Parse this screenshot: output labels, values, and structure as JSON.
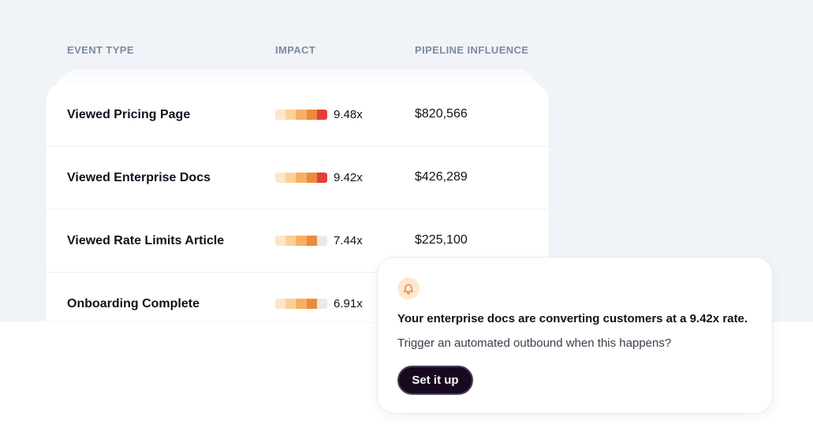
{
  "table": {
    "headers": {
      "event_type": "EVENT TYPE",
      "impact": "IMPACT",
      "pipeline_influence": "PIPELINE INFLUENCE"
    },
    "rows": [
      {
        "event": "Viewed Pricing Page",
        "impact": "9.48x",
        "impact_level": 5,
        "pipeline": "$820,566"
      },
      {
        "event": "Viewed Enterprise Docs",
        "impact": "9.42x",
        "impact_level": 5,
        "pipeline": "$426,289"
      },
      {
        "event": "Viewed Rate Limits Article",
        "impact": "7.44x",
        "impact_level": 4,
        "pipeline": "$225,100"
      },
      {
        "event": "Onboarding Complete",
        "impact": "6.91x",
        "impact_level": 4,
        "pipeline": ""
      }
    ]
  },
  "impact_bar_colors": [
    "#fde6c8",
    "#fbd19a",
    "#f7b063",
    "#ee8a3b",
    "#e3403b"
  ],
  "impact_bar_empty_color": "#e7eaee",
  "notification": {
    "icon": "bell-icon",
    "title": "Your enterprise docs are converting customers at a 9.42x rate.",
    "body": "Trigger an automated outbound when this happens?",
    "button_label": "Set it up"
  }
}
